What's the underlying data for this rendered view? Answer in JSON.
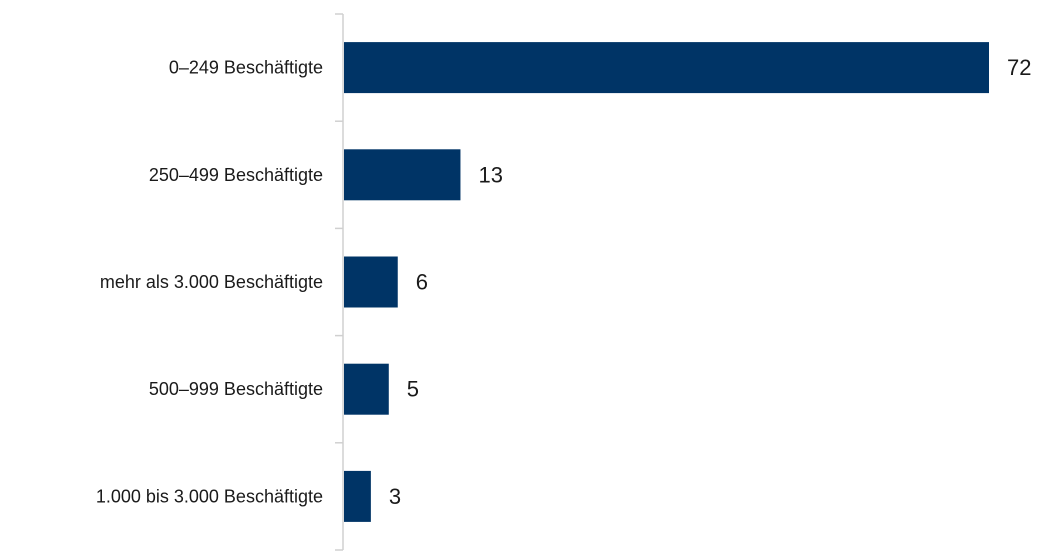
{
  "chart_data": {
    "type": "bar",
    "orientation": "horizontal",
    "categories": [
      "0–249 Beschäftigte",
      "250–499 Beschäftigte",
      "mehr als 3.000 Beschäftigte",
      "500–999 Beschäftigte",
      "1.000 bis 3.000 Beschäftigte"
    ],
    "values": [
      72,
      13,
      6,
      5,
      3
    ],
    "xlim": [
      0,
      72
    ],
    "grid": false,
    "legend": "none",
    "data_labels": true,
    "bar_color": "#003466",
    "axis_color": "#d0d0d0"
  }
}
